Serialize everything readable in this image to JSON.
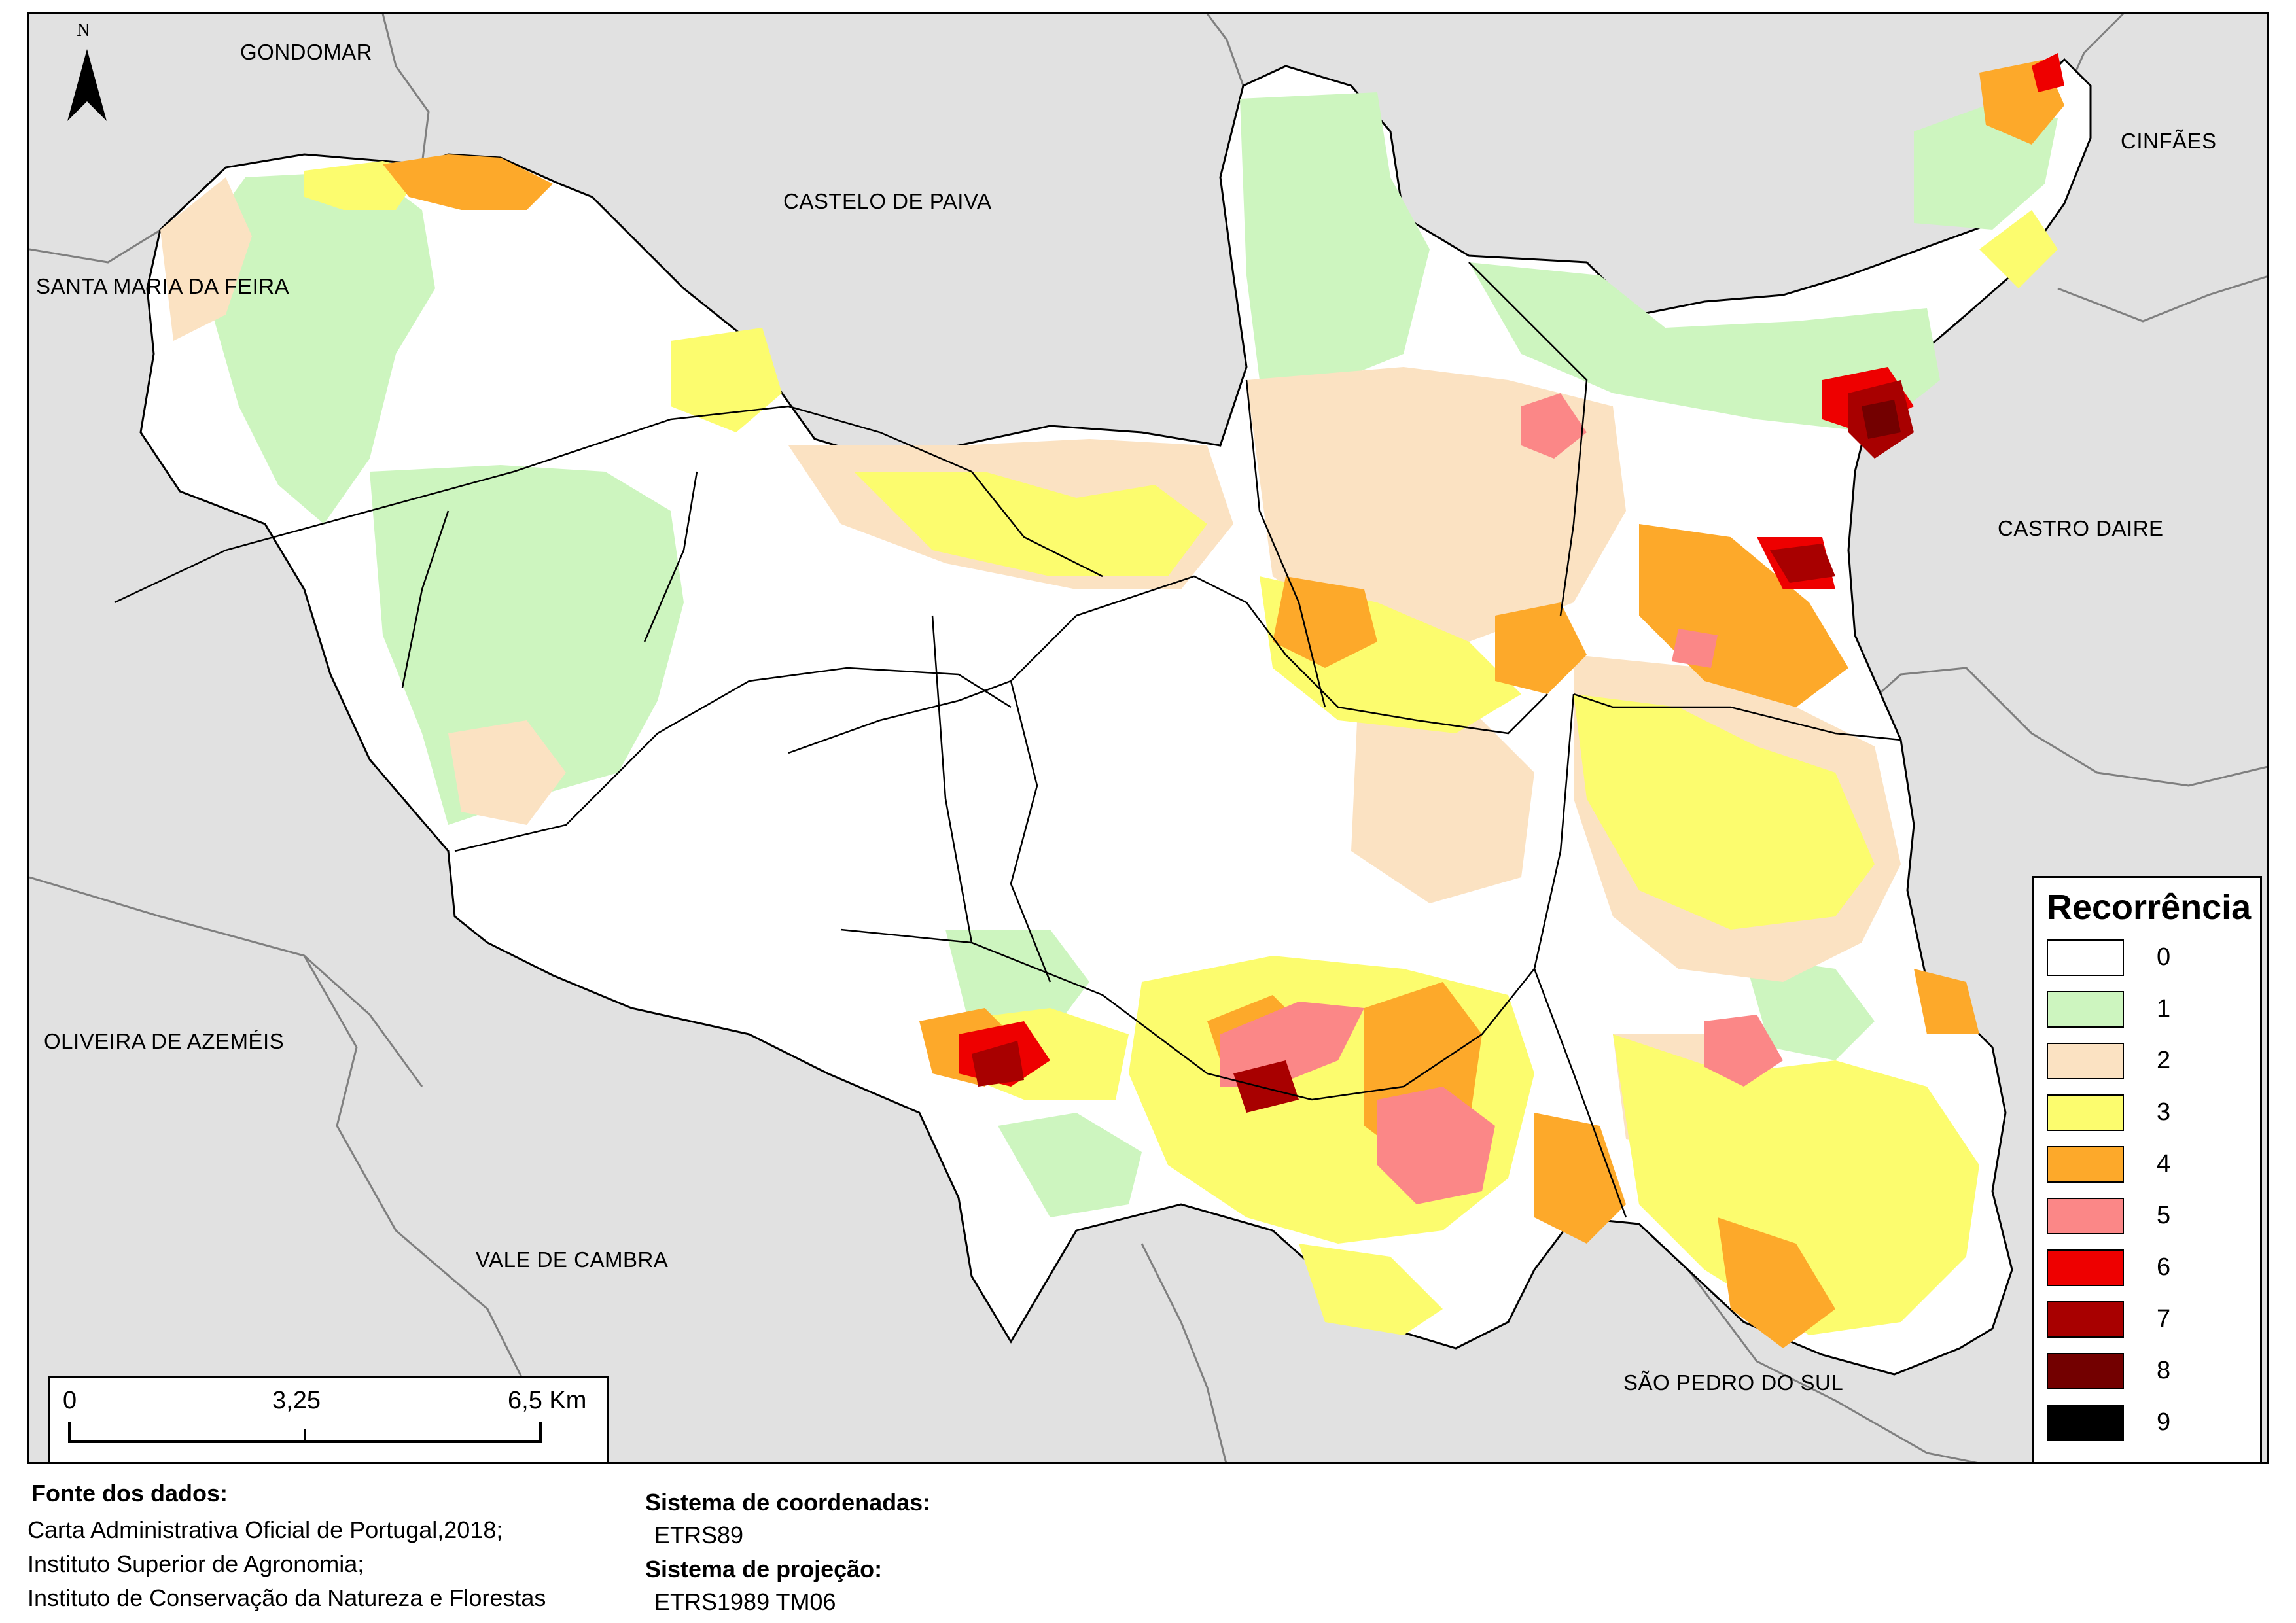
{
  "map": {
    "north_letter": "N",
    "neighbours": [
      {
        "id": "gondomar",
        "label": "GONDOMAR"
      },
      {
        "id": "castelo-de-paiva",
        "label": "CASTELO DE PAIVA"
      },
      {
        "id": "cinfaes",
        "label": "CINFÃES"
      },
      {
        "id": "santa-maria-da-feira",
        "label": "SANTA MARIA DA FEIRA"
      },
      {
        "id": "castro-daire",
        "label": "CASTRO DAIRE"
      },
      {
        "id": "oliveira-de-azemeis",
        "label": "OLIVEIRA DE AZEMÉIS"
      },
      {
        "id": "vale-de-cambra",
        "label": "VALE DE CAMBRA"
      },
      {
        "id": "sao-pedro-do-sul",
        "label": "SÃO PEDRO DO SUL"
      }
    ]
  },
  "legend": {
    "title": "Recorrência",
    "items": [
      {
        "label": "0",
        "color": "#ffffff"
      },
      {
        "label": "1",
        "color": "#cdf5bf"
      },
      {
        "label": "2",
        "color": "#fbe2c2"
      },
      {
        "label": "3",
        "color": "#fcfc6e"
      },
      {
        "label": "4",
        "color": "#fda92a"
      },
      {
        "label": "5",
        "color": "#fb8787"
      },
      {
        "label": "6",
        "color": "#ee0000"
      },
      {
        "label": "7",
        "color": "#a80000"
      },
      {
        "label": "8",
        "color": "#730000"
      },
      {
        "label": "9",
        "color": "#000000"
      }
    ]
  },
  "scale": {
    "labels": [
      "0",
      "3,25",
      "6,5 Km"
    ]
  },
  "footer": {
    "sources_title": "Fonte dos dados:",
    "sources": [
      "Carta Administrativa Oficial de Portugal,2018;",
      "Instituto Superior de Agronomia;",
      "Instituto de Conservação da Natureza e Florestas"
    ],
    "crs_title": "Sistema de coordenadas:",
    "crs_value": "ETRS89",
    "proj_title": "Sistema de projeção:",
    "proj_value": "ETRS1989 TM06"
  }
}
